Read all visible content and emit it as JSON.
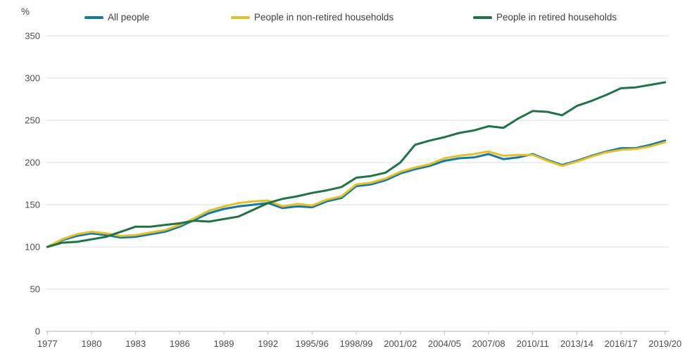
{
  "unit_label": "%",
  "chart_data": {
    "type": "line",
    "title": "",
    "xlabel": "",
    "ylabel": "%",
    "ylim": [
      0,
      350
    ],
    "yticks": [
      0,
      50,
      100,
      150,
      200,
      250,
      300,
      350
    ],
    "xtick_every": 3,
    "grid": true,
    "legend_position": "top",
    "categories": [
      "1977",
      "1978",
      "1979",
      "1980",
      "1981",
      "1982",
      "1983",
      "1984",
      "1985",
      "1986",
      "1987",
      "1988",
      "1989",
      "1990",
      "1991",
      "1992",
      "1993",
      "1994",
      "1995/96",
      "1996/97",
      "1997/98",
      "1998/99",
      "1999/00",
      "2000/01",
      "2001/02",
      "2002/03",
      "2003/04",
      "2004/05",
      "2005/06",
      "2006/07",
      "2007/08",
      "2008/09",
      "2009/10",
      "2010/11",
      "2011/12",
      "2012/13",
      "2013/14",
      "2014/15",
      "2015/16",
      "2016/17",
      "2017/18",
      "2018/19",
      "2019/20"
    ],
    "series": [
      {
        "name": "All people",
        "color": "#1779a3",
        "values": [
          100,
          108,
          113,
          116,
          114,
          111,
          112,
          115,
          118,
          124,
          132,
          140,
          145,
          148,
          150,
          152,
          146,
          148,
          147,
          154,
          158,
          172,
          174,
          179,
          187,
          192,
          196,
          202,
          205,
          206,
          210,
          204,
          206,
          210,
          203,
          197,
          202,
          208,
          213,
          217,
          217,
          221,
          226
        ]
      },
      {
        "name": "People in non-retired households",
        "color": "#e2c02b",
        "values": [
          100,
          109,
          115,
          118,
          116,
          113,
          114,
          117,
          120,
          126,
          134,
          143,
          148,
          152,
          154,
          155,
          148,
          151,
          149,
          156,
          160,
          174,
          176,
          181,
          189,
          194,
          198,
          205,
          208,
          210,
          213,
          208,
          209,
          209,
          202,
          196,
          201,
          207,
          212,
          215,
          216,
          219,
          224
        ]
      },
      {
        "name": "People in retired households",
        "color": "#217346",
        "values": [
          100,
          105,
          106,
          109,
          112,
          118,
          124,
          124,
          126,
          128,
          131,
          130,
          133,
          136,
          144,
          152,
          157,
          160,
          164,
          167,
          171,
          182,
          184,
          188,
          200,
          221,
          226,
          230,
          235,
          238,
          243,
          241,
          252,
          261,
          260,
          256,
          267,
          273,
          280,
          288,
          289,
          292,
          295
        ]
      }
    ],
    "colors": {
      "gridline": "#dcdcdc",
      "axis_line": "#b3b3b3",
      "tick": "#c2c2c2",
      "text": "#4d4d4d"
    }
  }
}
